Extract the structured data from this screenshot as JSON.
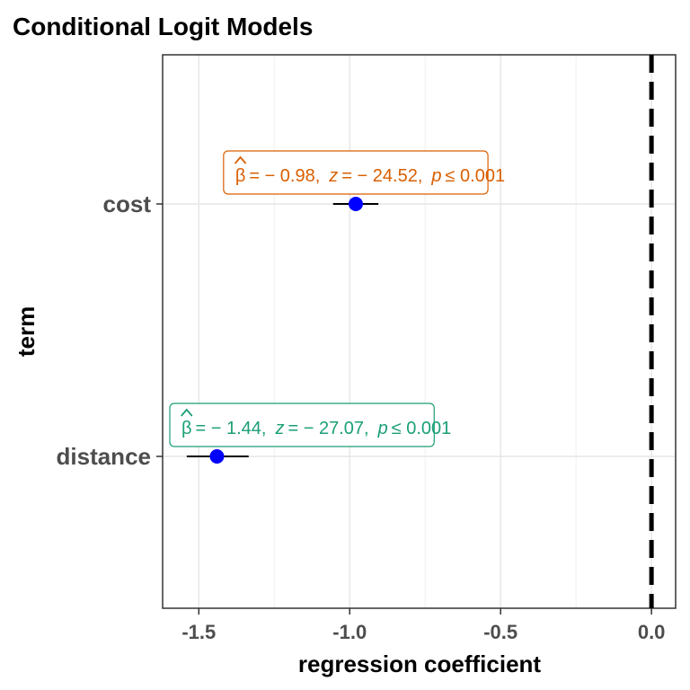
{
  "chart_data": {
    "type": "scatter",
    "title": "Conditional Logit Models",
    "xlabel": "regression coefficient",
    "ylabel": "term",
    "xlim": [
      -1.62,
      0.08
    ],
    "x_ticks": [
      "-1.5",
      "-1.0",
      "-0.5",
      "0.0"
    ],
    "x_tick_values": [
      -1.5,
      -1.0,
      -0.5,
      0.0
    ],
    "reference_line": {
      "x": 0.0,
      "style": "dashed",
      "color": "#000000"
    },
    "grid": true,
    "point_color": "#0000ff",
    "terms": [
      {
        "name": "cost",
        "estimate": -0.98,
        "ci_low": -1.055,
        "ci_high": -0.905,
        "label": {
          "beta_symbol": "β",
          "estimate_text": "= − 0.98,",
          "z_symbol": "z",
          "z_text": "= − 24.52,",
          "p_symbol": "p",
          "p_text": "≤ 0.001",
          "color": "#d95f02"
        }
      },
      {
        "name": "distance",
        "estimate": -1.44,
        "ci_low": -1.54,
        "ci_high": -1.335,
        "label": {
          "beta_symbol": "β",
          "estimate_text": "= − 1.44,",
          "z_symbol": "z",
          "z_text": "= − 27.07,",
          "p_symbol": "p",
          "p_text": "≤ 0.001",
          "color": "#1b9e77"
        }
      }
    ]
  }
}
